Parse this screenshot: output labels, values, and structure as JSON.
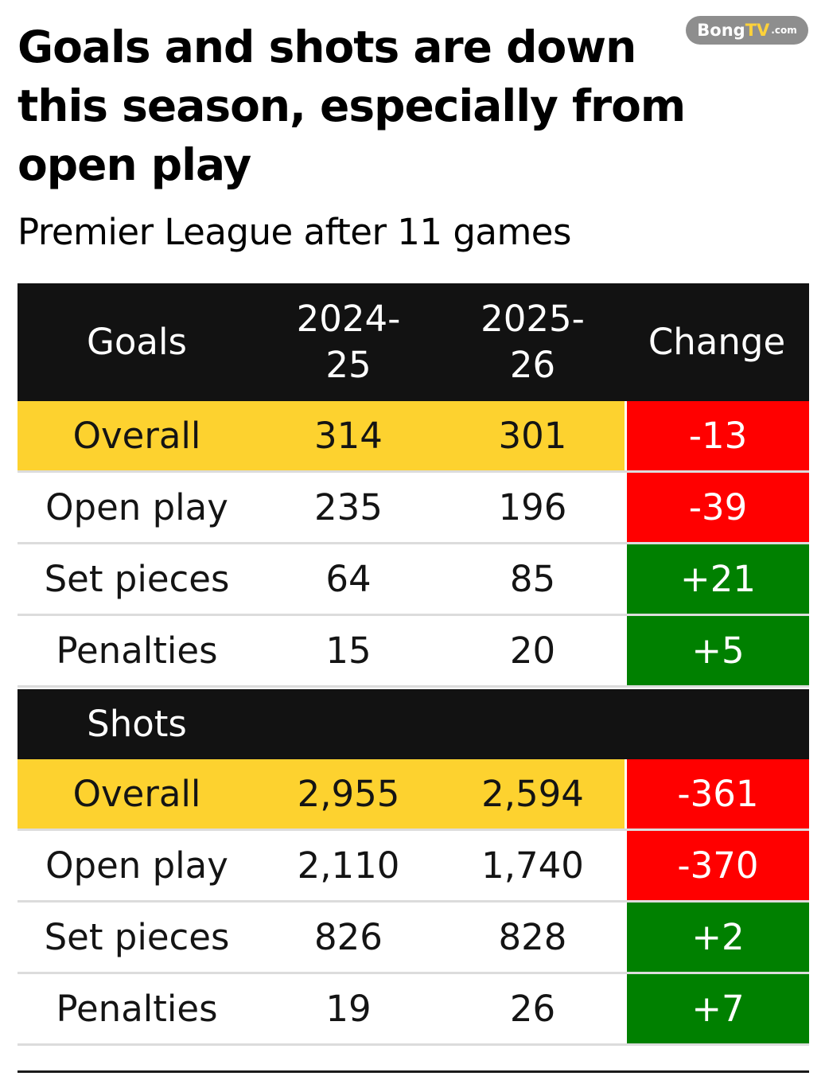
{
  "title": "Goals and shots are down this season, especially from open play",
  "subtitle": "Premier League after 11 games",
  "watermark": {
    "brand_a": "Bong",
    "brand_b": "TV",
    "brand_c": ".com"
  },
  "colors": {
    "header_bg": "#121212",
    "highlight": "#fdd22f",
    "negative": "#ff0000",
    "positive": "#008000"
  },
  "chart_data": {
    "type": "table",
    "title": "Goals and shots are down this season, especially from open play",
    "subtitle": "Premier League after 11 games",
    "columns": [
      "Goals",
      "2024-\n25",
      "2025-\n26",
      "Change"
    ],
    "sections": [
      {
        "name": "Goals",
        "rows": [
          {
            "label": "Overall",
            "a": "314",
            "b": "301",
            "change": "-13",
            "highlight": true,
            "sign": "neg"
          },
          {
            "label": "Open play",
            "a": "235",
            "b": "196",
            "change": "-39",
            "highlight": false,
            "sign": "neg"
          },
          {
            "label": "Set pieces",
            "a": "64",
            "b": "85",
            "change": "+21",
            "highlight": false,
            "sign": "pos"
          },
          {
            "label": "Penalties",
            "a": "15",
            "b": "20",
            "change": "+5",
            "highlight": false,
            "sign": "pos"
          }
        ]
      },
      {
        "name": "Shots",
        "rows": [
          {
            "label": "Overall",
            "a": "2,955",
            "b": "2,594",
            "change": "-361",
            "highlight": true,
            "sign": "neg"
          },
          {
            "label": "Open play",
            "a": "2,110",
            "b": "1,740",
            "change": "-370",
            "highlight": false,
            "sign": "neg"
          },
          {
            "label": "Set pieces",
            "a": "826",
            "b": "828",
            "change": "+2",
            "highlight": false,
            "sign": "pos"
          },
          {
            "label": "Penalties",
            "a": "19",
            "b": "26",
            "change": "+7",
            "highlight": false,
            "sign": "pos"
          }
        ]
      }
    ]
  }
}
